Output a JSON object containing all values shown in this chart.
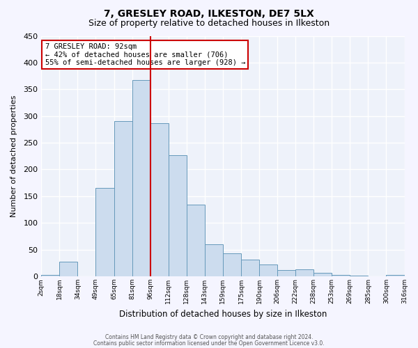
{
  "title": "7, GRESLEY ROAD, ILKESTON, DE7 5LX",
  "subtitle": "Size of property relative to detached houses in Ilkeston",
  "xlabel": "Distribution of detached houses by size in Ilkeston",
  "ylabel": "Number of detached properties",
  "bar_color": "#ccdcee",
  "bar_edge_color": "#6699bb",
  "background_color": "#eef2fa",
  "grid_color": "#ffffff",
  "ylim": [
    0,
    450
  ],
  "yticks": [
    0,
    50,
    100,
    150,
    200,
    250,
    300,
    350,
    400,
    450
  ],
  "bin_labels": [
    "2sqm",
    "18sqm",
    "34sqm",
    "49sqm",
    "65sqm",
    "81sqm",
    "96sqm",
    "112sqm",
    "128sqm",
    "143sqm",
    "159sqm",
    "175sqm",
    "190sqm",
    "206sqm",
    "222sqm",
    "238sqm",
    "253sqm",
    "269sqm",
    "285sqm",
    "300sqm",
    "316sqm"
  ],
  "bar_heights": [
    2,
    27,
    0,
    165,
    290,
    367,
    287,
    226,
    134,
    60,
    43,
    31,
    22,
    12,
    13,
    6,
    3,
    1,
    0,
    2
  ],
  "property_label": "7 GRESLEY ROAD: 92sqm",
  "annotation_line1": "← 42% of detached houses are smaller (706)",
  "annotation_line2": "55% of semi-detached houses are larger (928) →",
  "vline_bin_index": 6,
  "vline_color": "#cc0000",
  "annotation_box_edge": "#cc0000",
  "footer_line1": "Contains HM Land Registry data © Crown copyright and database right 2024.",
  "footer_line2": "Contains public sector information licensed under the Open Government Licence v3.0.",
  "n_bins": 20,
  "title_fontsize": 10,
  "subtitle_fontsize": 9
}
